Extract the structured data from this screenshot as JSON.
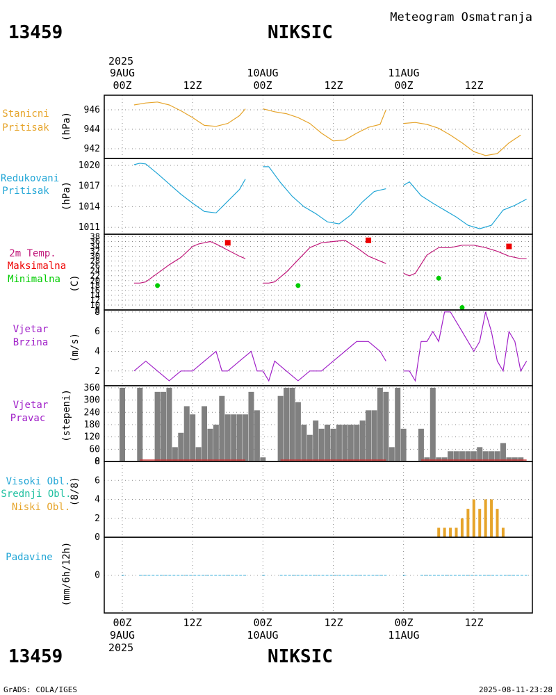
{
  "header": {
    "station_id": "13459",
    "station_name": "NIKSIC",
    "meteogram_title": "Meteogram Osmatranja",
    "year": "2025",
    "footer_left": "GrADS: COLA/IGES",
    "footer_right": "2025-08-11-23:28"
  },
  "time_axis": {
    "top_dates": [
      "9AUG",
      "10AUG",
      "11AUG"
    ],
    "ticks": [
      "00Z",
      "12Z",
      "00Z",
      "12Z",
      "00Z",
      "12Z"
    ],
    "bottom_dates": [
      "9AUG",
      "10AUG",
      "11AUG"
    ]
  },
  "colors": {
    "pressure": "#e6a42a",
    "reduced": "#22a6d6",
    "temp": "#c0187a",
    "max": "#ee0000",
    "min": "#00cc00",
    "wind": "#a020c8",
    "bars": "#808080",
    "low_cloud": "#e6a42a",
    "mid_cloud": "#20c0a0",
    "high_cloud": "#22a6d6",
    "precip": "#22a6d6",
    "panel_label_purple": "#a020c8"
  },
  "panels": {
    "station_pressure": {
      "label_1": "Stanicni",
      "label_2": "Pritisak",
      "unit": "(hPa)",
      "ticks": [
        "946",
        "944",
        "942"
      ]
    },
    "reduced_pressure": {
      "label_1": "Redukovani",
      "label_2": "Pritisak",
      "unit": "(hPa)",
      "ticks": [
        "1020",
        "1017",
        "1014",
        "1011"
      ]
    },
    "temperature": {
      "label_1": "2m Temp.",
      "label_2": "Maksimalna",
      "label_3": "Minimalna",
      "unit": "(C)",
      "ticks": [
        "38",
        "36",
        "34",
        "32",
        "30",
        "28",
        "26",
        "24",
        "22",
        "20",
        "18",
        "16",
        "14",
        "12",
        "10",
        "8"
      ]
    },
    "wind_speed": {
      "label_1": "Vjetar",
      "label_2": "Brzina",
      "unit": "(m/s)",
      "ticks": [
        "8",
        "6",
        "4",
        "2"
      ]
    },
    "wind_dir": {
      "label_1": "Vjetar",
      "label_2": "Pravac",
      "unit": "(stepeni)",
      "ticks": [
        "360",
        "300",
        "240",
        "180",
        "120",
        "60",
        "0"
      ]
    },
    "clouds": {
      "label_1": "Visoki Obl.",
      "label_2": "Srednji Obl.",
      "label_3": "Niski Obl.",
      "unit": "(8/8)",
      "ticks": [
        "8",
        "6",
        "4",
        "2",
        "0"
      ]
    },
    "precip": {
      "label_1": "Padavine",
      "unit": "(mm/6h/12h)",
      "ticks": [
        "0"
      ]
    }
  },
  "chart_data": [
    {
      "type": "line",
      "title": "Stanicni Pritisak",
      "ylabel": "(hPa)",
      "ylim": [
        941,
        947.5
      ],
      "series": [
        {
          "name": "Stanicni Pritisak",
          "x": [
            2,
            4,
            6,
            8,
            10,
            12,
            14,
            16,
            18,
            20,
            21,
            24,
            26,
            28,
            30,
            32,
            34,
            36,
            38,
            40,
            42,
            44,
            45,
            48,
            50,
            52,
            54,
            56,
            58,
            60,
            62,
            64,
            66,
            68
          ],
          "values": [
            946.5,
            946.7,
            946.8,
            946.5,
            945.9,
            945.2,
            944.4,
            944.3,
            944.6,
            945.4,
            946.1,
            946.1,
            945.8,
            945.6,
            945.2,
            944.6,
            943.6,
            942.8,
            942.9,
            943.6,
            944.2,
            944.5,
            946.0,
            944.6,
            944.7,
            944.5,
            944.1,
            943.4,
            942.6,
            941.7,
            941.3,
            941.5,
            942.6,
            943.4
          ]
        }
      ]
    },
    {
      "type": "line",
      "title": "Redukovani Pritisak",
      "ylabel": "(hPa)",
      "ylim": [
        1010,
        1021
      ],
      "series": [
        {
          "name": "Redukovani Pritisak",
          "x": [
            2,
            3,
            4,
            6,
            8,
            10,
            12,
            14,
            16,
            18,
            20,
            21,
            24,
            25,
            27,
            29,
            31,
            33,
            35,
            37,
            39,
            41,
            43,
            45,
            48,
            49,
            51,
            53,
            55,
            57,
            59,
            61,
            63,
            65,
            67,
            69
          ],
          "values": [
            1020.1,
            1020.3,
            1020.2,
            1018.8,
            1017.3,
            1015.8,
            1014.5,
            1013.3,
            1013.1,
            1014.8,
            1016.5,
            1018.0,
            1019.8,
            1019.8,
            1017.5,
            1015.5,
            1014.0,
            1013.0,
            1011.8,
            1011.5,
            1012.8,
            1014.7,
            1016.2,
            1016.6,
            1017.1,
            1017.6,
            1015.6,
            1014.5,
            1013.5,
            1012.5,
            1011.3,
            1010.8,
            1011.3,
            1013.5,
            1014.2,
            1015.1
          ]
        }
      ]
    },
    {
      "type": "line",
      "title": "2m Temp. Maksimalna Minimalna",
      "ylabel": "(C)",
      "ylim": [
        8,
        39
      ],
      "series": [
        {
          "name": "2m Temp.",
          "x": [
            2,
            3,
            4,
            6,
            8,
            10,
            12,
            13,
            14,
            15,
            16,
            18,
            20,
            21,
            24,
            25,
            26,
            28,
            30,
            32,
            34,
            36,
            38,
            40,
            42,
            44,
            45,
            48,
            49,
            50,
            52,
            54,
            56,
            58,
            60,
            62,
            64,
            66,
            68,
            69
          ],
          "values": [
            19,
            19,
            19.5,
            23,
            26.5,
            29.5,
            34,
            35,
            35.5,
            36,
            35,
            32.5,
            30,
            29,
            19,
            19,
            19.5,
            23.5,
            28.5,
            33.5,
            35.5,
            36,
            36.5,
            33.5,
            30,
            28,
            27,
            23,
            22,
            23,
            30.5,
            33.5,
            33.5,
            34.5,
            34.5,
            33.5,
            32,
            30,
            29,
            29
          ]
        },
        {
          "name": "Maksimalna",
          "x": [
            18,
            42,
            66
          ],
          "values": [
            35.5,
            36.5,
            34
          ]
        },
        {
          "name": "Minimalna",
          "x": [
            6,
            30,
            54,
            58
          ],
          "values": [
            18,
            18,
            21,
            9
          ]
        }
      ]
    },
    {
      "type": "line",
      "title": "Vjetar Brzina",
      "ylabel": "(m/s)",
      "ylim": [
        0.5,
        8.2
      ],
      "series": [
        {
          "name": "Vjetar Brzina",
          "x": [
            2,
            4,
            6,
            7,
            8,
            9,
            10,
            12,
            14,
            16,
            17,
            18,
            20,
            22,
            23,
            24,
            25,
            26,
            28,
            30,
            32,
            34,
            36,
            38,
            40,
            42,
            44,
            45,
            48,
            49,
            50,
            51,
            52,
            53,
            54,
            55,
            56,
            58,
            59,
            60,
            61,
            62,
            63,
            64,
            65,
            66,
            67,
            68,
            69
          ],
          "values": [
            2,
            3,
            2,
            1.5,
            1,
            1.5,
            2,
            2,
            3,
            4,
            2,
            2,
            3,
            4,
            2,
            2,
            1,
            3,
            2,
            1,
            2,
            2,
            3,
            4,
            5,
            5,
            4,
            3,
            2,
            2,
            1,
            5,
            5,
            6,
            5,
            8,
            8,
            6,
            5,
            4,
            5,
            8,
            6,
            3,
            2,
            6,
            5,
            2,
            3
          ]
        }
      ]
    },
    {
      "type": "bar",
      "title": "Vjetar Pravac",
      "ylabel": "(stepeni)",
      "ylim": [
        0,
        370
      ],
      "x": [
        0,
        3,
        6,
        7,
        8,
        9,
        10,
        11,
        12,
        13,
        14,
        15,
        16,
        17,
        18,
        19,
        20,
        21,
        22,
        23,
        24,
        27,
        28,
        29,
        30,
        31,
        32,
        33,
        34,
        35,
        36,
        37,
        38,
        39,
        40,
        41,
        42,
        43,
        44,
        45,
        46,
        47,
        48,
        51,
        52,
        53,
        54,
        55,
        56,
        57,
        58,
        59,
        60,
        61,
        62,
        63,
        64,
        65,
        66,
        67,
        68
      ],
      "values": [
        360,
        360,
        340,
        340,
        360,
        70,
        140,
        270,
        230,
        70,
        270,
        160,
        180,
        320,
        230,
        230,
        230,
        230,
        340,
        250,
        20,
        320,
        360,
        360,
        290,
        180,
        130,
        200,
        160,
        180,
        160,
        180,
        180,
        180,
        180,
        200,
        250,
        250,
        360,
        340,
        70,
        360,
        160,
        160,
        20,
        360,
        20,
        20,
        50,
        50,
        50,
        50,
        50,
        70,
        50,
        50,
        50,
        90,
        20,
        20,
        20
      ]
    },
    {
      "type": "bar",
      "title": "Visoki Obl. Srednji Obl. Niski Obl.",
      "ylabel": "(8/8)",
      "ylim": [
        0,
        8
      ],
      "x": [
        54,
        55,
        56,
        57,
        58,
        59,
        60,
        61,
        62,
        63,
        64,
        65
      ],
      "series": [
        {
          "name": "Niski Obl.",
          "values": [
            1,
            1,
            1,
            1,
            2,
            3,
            4,
            3,
            4,
            4,
            3,
            1
          ]
        },
        {
          "name": "Srednji Obl.",
          "values": [
            0,
            0,
            0,
            0,
            0,
            0,
            0,
            0,
            0,
            0,
            0,
            0
          ]
        },
        {
          "name": "Visoki Obl.",
          "values": [
            0,
            0,
            0,
            0,
            0,
            0,
            0,
            0,
            0,
            0,
            0,
            0
          ]
        }
      ]
    },
    {
      "type": "line",
      "title": "Padavine",
      "ylabel": "(mm/6h/12h)",
      "ylim": [
        -1,
        1
      ],
      "series": [
        {
          "name": "Padavine",
          "x": [
            0,
            72
          ],
          "values": [
            0,
            0
          ]
        }
      ]
    }
  ]
}
